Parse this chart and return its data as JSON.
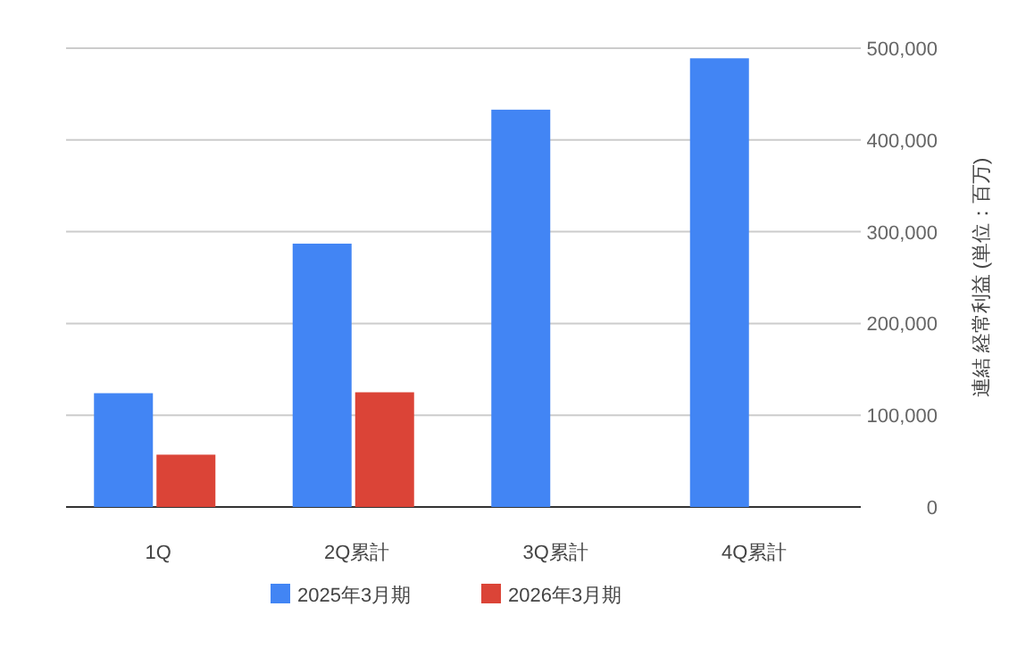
{
  "chart_data": {
    "type": "bar",
    "categories": [
      "1Q",
      "2Q累計",
      "3Q累計",
      "4Q累計"
    ],
    "series": [
      {
        "name": "2025年3月期",
        "color": "#4285f4",
        "values": [
          124000,
          287000,
          433000,
          489000
        ]
      },
      {
        "name": "2026年3月期",
        "color": "#db4437",
        "values": [
          57000,
          125000,
          null,
          null
        ]
      }
    ],
    "ylim": [
      0,
      500000
    ],
    "yticks": [
      {
        "value": 0,
        "label": "0"
      },
      {
        "value": 100000,
        "label": "100,000"
      },
      {
        "value": 200000,
        "label": "200,000"
      },
      {
        "value": 300000,
        "label": "300,000"
      },
      {
        "value": 400000,
        "label": "400,000"
      },
      {
        "value": 500000,
        "label": "500,000"
      }
    ],
    "ylabel": "連結 経常利益 (単位：百万)",
    "grid": "y",
    "legend": "bottom"
  }
}
